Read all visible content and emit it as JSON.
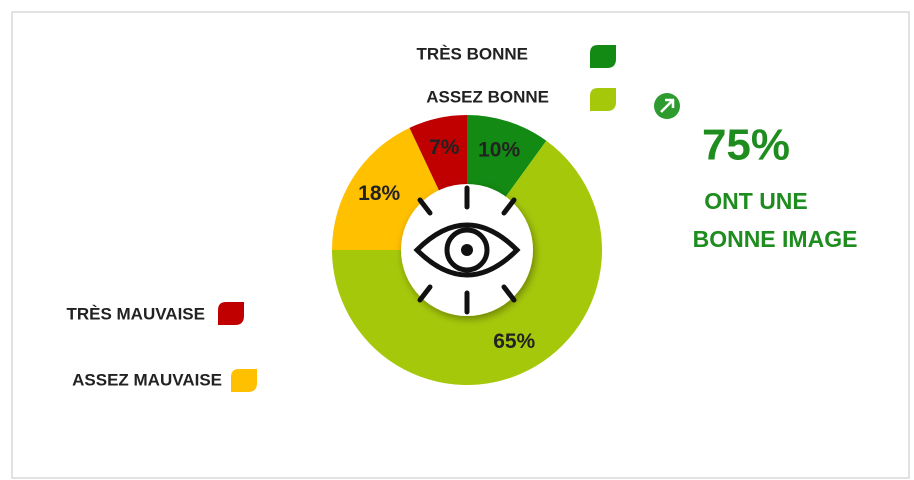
{
  "chart_data": {
    "type": "donut",
    "categories": [
      "TRÈS BONNE",
      "ASSEZ BONNE",
      "ASSEZ MAUVAISE",
      "TRÈS MAUVAISE"
    ],
    "values": [
      10,
      65,
      18,
      7
    ],
    "value_labels": [
      "10%",
      "65%",
      "18%",
      "7%"
    ],
    "colors": [
      "#138a13",
      "#a6c80b",
      "#ffc000",
      "#c00000"
    ],
    "annotations": [
      "75%",
      "ONT UNE",
      "BONNE IMAGE"
    ]
  }
}
